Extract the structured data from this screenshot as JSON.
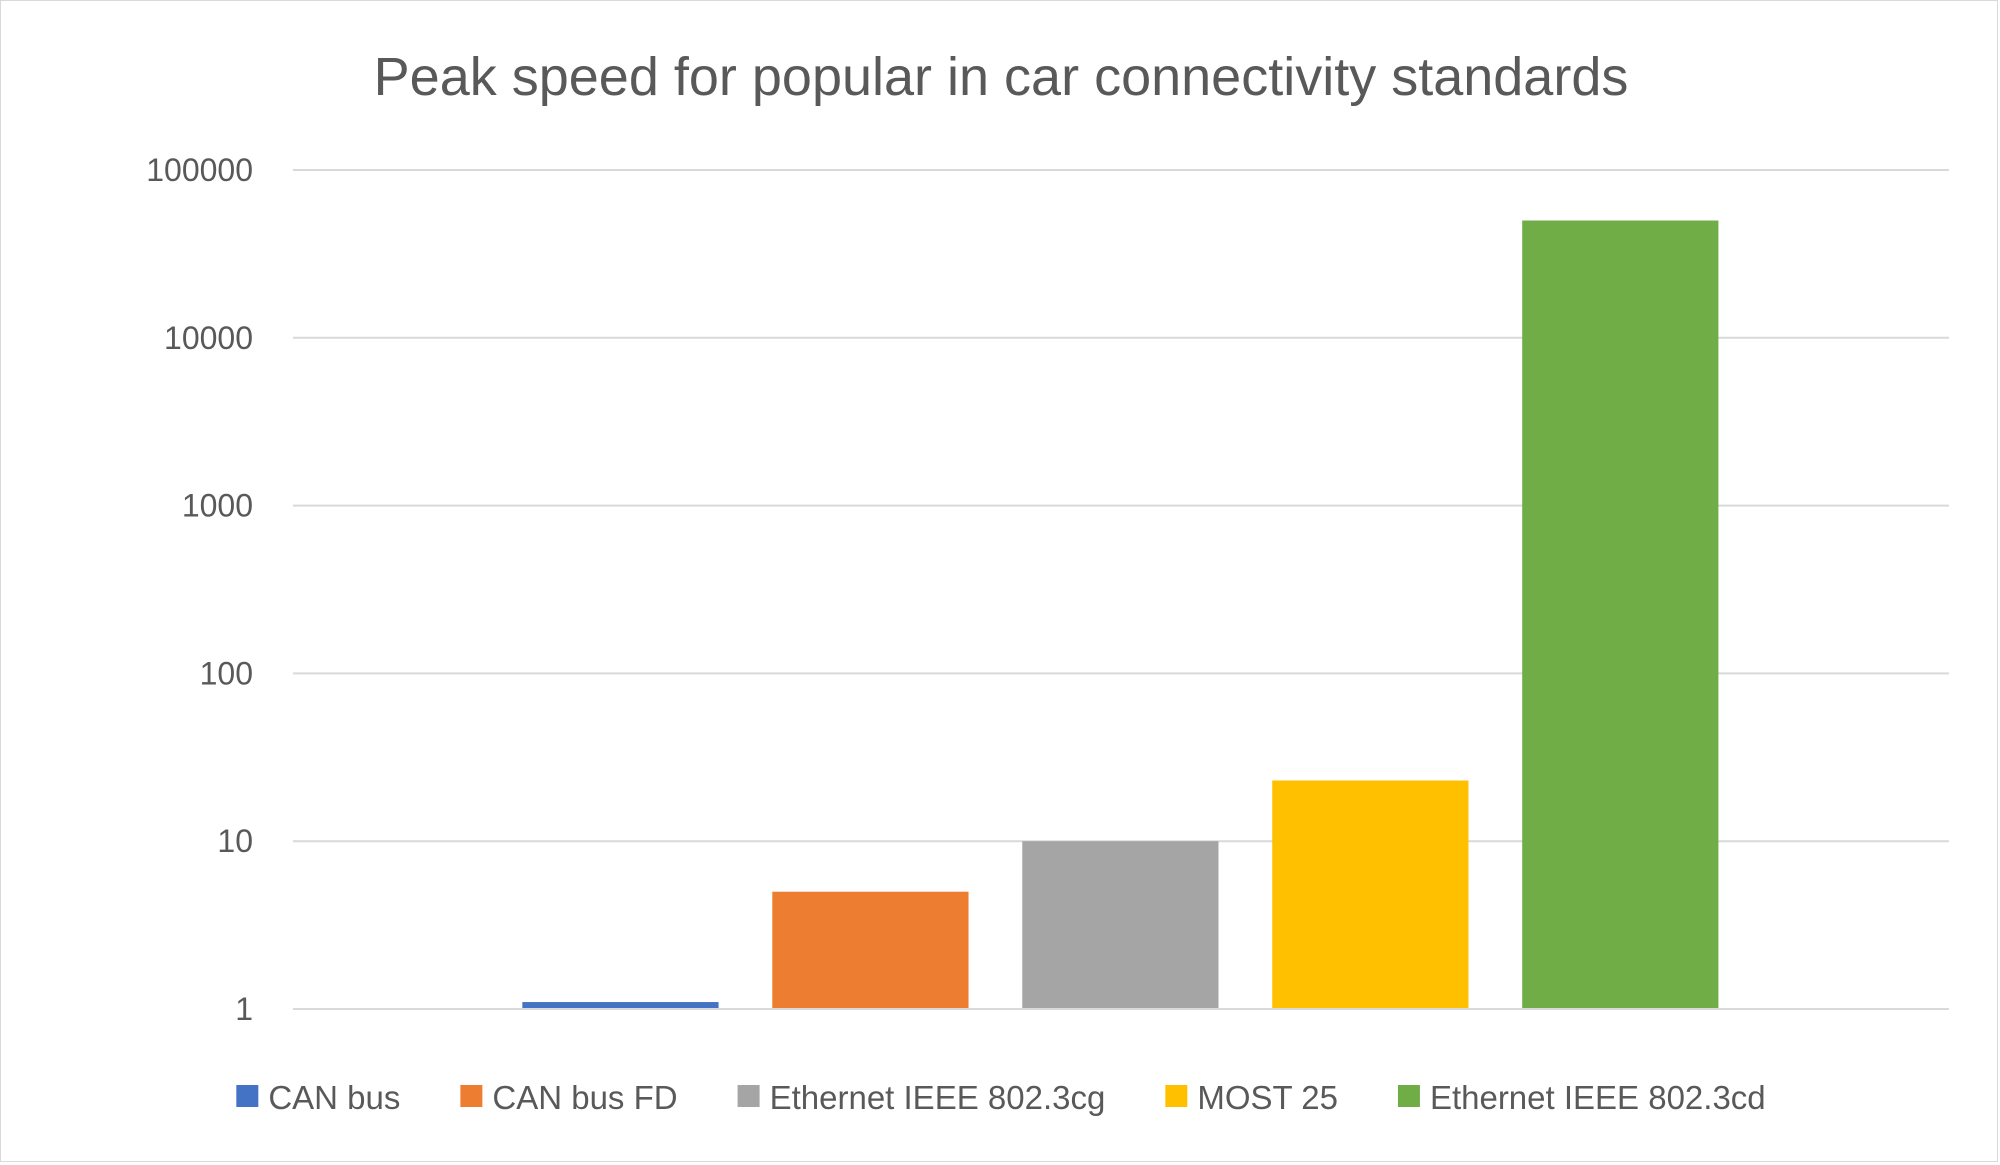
{
  "chart_data": {
    "type": "bar",
    "title": "Peak speed for popular in car connectivity standards",
    "xlabel": "",
    "ylabel": "",
    "y_scale": "log",
    "ylim": [
      1,
      100000
    ],
    "y_ticks": [
      1,
      10,
      100,
      1000,
      10000,
      100000
    ],
    "y_tick_labels": [
      "1",
      "10",
      "100",
      "1000",
      "10000",
      "100000"
    ],
    "grid": true,
    "legend_position": "bottom",
    "series": [
      {
        "name": "CAN bus",
        "value": 1.1,
        "color": "#4472C4"
      },
      {
        "name": "CAN bus FD",
        "value": 5,
        "color": "#ED7D31"
      },
      {
        "name": "Ethernet IEEE 802.3cg",
        "value": 10,
        "color": "#A5A5A5"
      },
      {
        "name": "MOST 25",
        "value": 23,
        "color": "#FFC000"
      },
      {
        "name": "Ethernet IEEE 802.3cd",
        "value": 50000,
        "color": "#70AD47"
      }
    ]
  }
}
